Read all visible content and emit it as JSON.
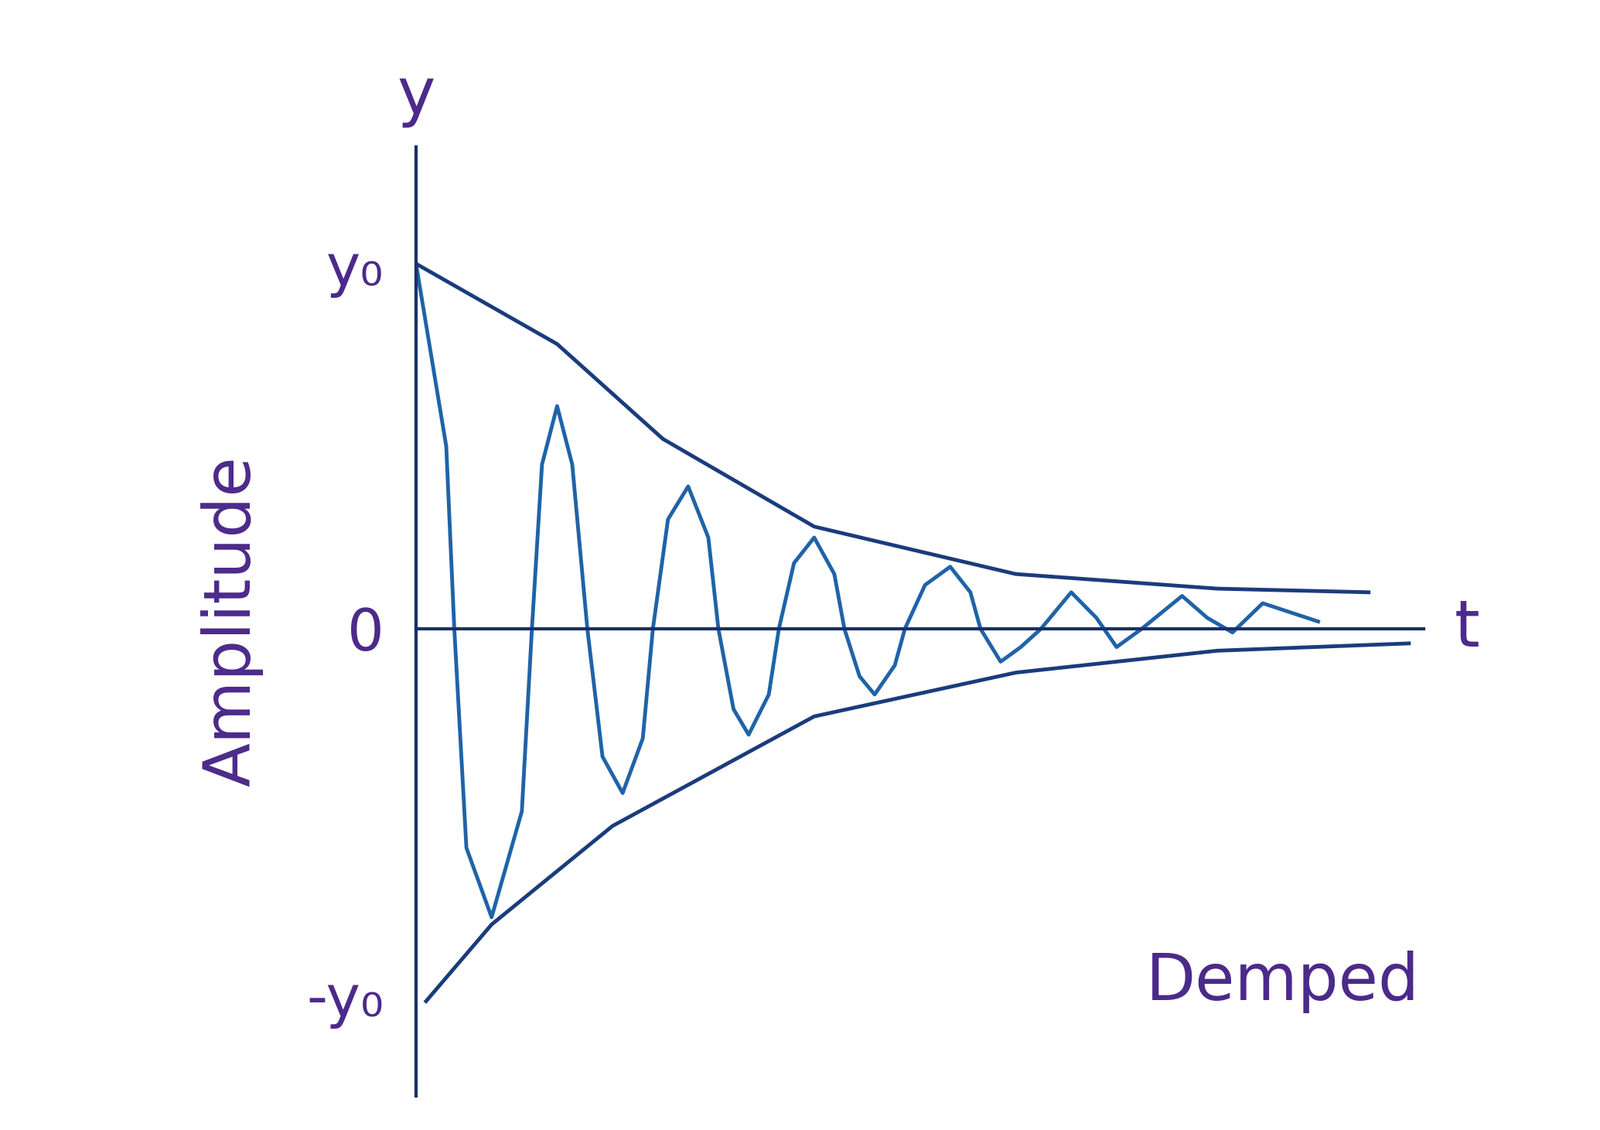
{
  "chart_data": {
    "type": "line",
    "ylabel": "Amplitude",
    "xlabel": "t",
    "y_axis_title": "y",
    "annotations": [
      "Demped"
    ],
    "tick_labels": "y",
    "xlim": [
      0,
      10
    ],
    "xticks": [],
    "ylim": [
      -1.28,
      1.32
    ],
    "yticks": [
      {
        "value": 1,
        "label": "y₀"
      },
      0,
      {
        "value": -1,
        "label": "-y₀"
      }
    ],
    "grid": false,
    "series": [
      {
        "color": "#1f63a8",
        "line_style": "solid",
        "x": [
          0,
          0.3,
          0.38,
          0.5,
          0.75,
          1.05,
          1.15,
          1.25,
          1.4,
          1.55,
          1.7,
          1.85,
          2.05,
          2.25,
          2.35,
          2.5,
          2.7,
          2.9,
          3.0,
          3.15,
          3.3,
          3.5,
          3.6,
          3.75,
          3.95,
          4.15,
          4.25,
          4.4,
          4.55,
          4.75,
          4.85,
          5.05,
          5.3,
          5.5,
          5.6,
          5.8,
          6.0,
          6.2,
          6.5,
          6.75,
          6.95,
          7.2,
          7.6,
          7.85,
          8.1,
          8.4,
          8.95
        ],
        "values": [
          1.0,
          0.5,
          0,
          -0.6,
          -0.79,
          -0.5,
          0,
          0.45,
          0.61,
          0.45,
          0,
          -0.35,
          -0.45,
          -0.3,
          0,
          0.3,
          0.39,
          0.25,
          0,
          -0.22,
          -0.29,
          -0.18,
          0,
          0.18,
          0.25,
          0.15,
          0,
          -0.13,
          -0.18,
          -0.1,
          0,
          0.12,
          0.17,
          0.1,
          0,
          -0.09,
          -0.05,
          0,
          0.1,
          0.03,
          -0.05,
          0,
          0.09,
          0.03,
          -0.01,
          0.07,
          0.02
        ]
      },
      {
        "color": "#1a3c7c",
        "line_style": "solid",
        "x": [
          0,
          1.4,
          2.45,
          3.95,
          5.95,
          7.95,
          9.45
        ],
        "values": [
          1.0,
          0.78,
          0.52,
          0.28,
          0.15,
          0.11,
          0.1
        ]
      },
      {
        "color": "#1a3c7c",
        "line_style": "solid",
        "x": [
          0.1,
          0.75,
          1.95,
          3.95,
          5.95,
          7.95,
          9.85
        ],
        "values": [
          -1.02,
          -0.81,
          -0.54,
          -0.24,
          -0.12,
          -0.06,
          -0.04
        ]
      }
    ]
  }
}
